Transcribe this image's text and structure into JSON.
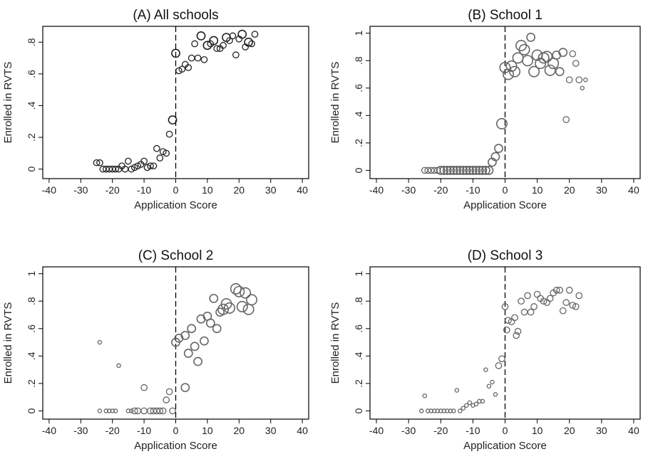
{
  "chart_data": [
    {
      "type": "scatter",
      "title": "(A) All schools",
      "xlabel": "Application Score",
      "ylabel": "Enrolled in RVTS",
      "xlim": [
        -40,
        40
      ],
      "ylim": [
        0,
        0.9
      ],
      "xticks": [
        -40,
        -30,
        -20,
        -10,
        0,
        10,
        20,
        30,
        40
      ],
      "xtick_labels": [
        "-40",
        "-30",
        "-20",
        "-10",
        "0",
        "10",
        "20",
        "30",
        "40"
      ],
      "yticks": [
        0,
        0.2,
        0.4,
        0.6,
        0.8
      ],
      "ytick_labels": [
        "0",
        ".2",
        ".4",
        ".6",
        ".8"
      ],
      "cutoff": 0,
      "marker_color": "#222222",
      "points": [
        {
          "x": -25,
          "y": 0.04,
          "n": 2
        },
        {
          "x": -24,
          "y": 0.04,
          "n": 2
        },
        {
          "x": -23,
          "y": 0.0,
          "n": 2
        },
        {
          "x": -22,
          "y": 0.0,
          "n": 2
        },
        {
          "x": -21,
          "y": 0.0,
          "n": 2
        },
        {
          "x": -20,
          "y": 0.0,
          "n": 2
        },
        {
          "x": -19,
          "y": 0.0,
          "n": 2
        },
        {
          "x": -18,
          "y": 0.0,
          "n": 2
        },
        {
          "x": -17,
          "y": 0.02,
          "n": 2
        },
        {
          "x": -16,
          "y": 0.0,
          "n": 2
        },
        {
          "x": -15,
          "y": 0.05,
          "n": 2
        },
        {
          "x": -14,
          "y": 0.0,
          "n": 2
        },
        {
          "x": -13,
          "y": 0.01,
          "n": 2
        },
        {
          "x": -12,
          "y": 0.02,
          "n": 2
        },
        {
          "x": -11,
          "y": 0.03,
          "n": 2
        },
        {
          "x": -10,
          "y": 0.05,
          "n": 2
        },
        {
          "x": -9,
          "y": 0.01,
          "n": 2
        },
        {
          "x": -8,
          "y": 0.02,
          "n": 2
        },
        {
          "x": -7,
          "y": 0.02,
          "n": 2
        },
        {
          "x": -6,
          "y": 0.13,
          "n": 2
        },
        {
          "x": -5,
          "y": 0.07,
          "n": 2
        },
        {
          "x": -4,
          "y": 0.11,
          "n": 2
        },
        {
          "x": -3,
          "y": 0.1,
          "n": 2
        },
        {
          "x": -2,
          "y": 0.22,
          "n": 2
        },
        {
          "x": -1,
          "y": 0.31,
          "n": 3
        },
        {
          "x": 0,
          "y": 0.73,
          "n": 3
        },
        {
          "x": 1,
          "y": 0.62,
          "n": 2
        },
        {
          "x": 2,
          "y": 0.63,
          "n": 2
        },
        {
          "x": 3,
          "y": 0.66,
          "n": 2
        },
        {
          "x": 4,
          "y": 0.64,
          "n": 2
        },
        {
          "x": 5,
          "y": 0.7,
          "n": 2
        },
        {
          "x": 6,
          "y": 0.79,
          "n": 2
        },
        {
          "x": 7,
          "y": 0.7,
          "n": 2
        },
        {
          "x": 8,
          "y": 0.84,
          "n": 3
        },
        {
          "x": 9,
          "y": 0.69,
          "n": 2
        },
        {
          "x": 10,
          "y": 0.78,
          "n": 3
        },
        {
          "x": 11,
          "y": 0.79,
          "n": 2
        },
        {
          "x": 12,
          "y": 0.81,
          "n": 3
        },
        {
          "x": 13,
          "y": 0.76,
          "n": 2
        },
        {
          "x": 14,
          "y": 0.76,
          "n": 2
        },
        {
          "x": 15,
          "y": 0.78,
          "n": 2
        },
        {
          "x": 16,
          "y": 0.83,
          "n": 3
        },
        {
          "x": 17,
          "y": 0.81,
          "n": 2
        },
        {
          "x": 18,
          "y": 0.84,
          "n": 2
        },
        {
          "x": 19,
          "y": 0.72,
          "n": 2
        },
        {
          "x": 20,
          "y": 0.82,
          "n": 2
        },
        {
          "x": 21,
          "y": 0.85,
          "n": 3
        },
        {
          "x": 22,
          "y": 0.77,
          "n": 2
        },
        {
          "x": 23,
          "y": 0.8,
          "n": 3
        },
        {
          "x": 24,
          "y": 0.79,
          "n": 2
        },
        {
          "x": 25,
          "y": 0.85,
          "n": 2
        }
      ]
    },
    {
      "type": "scatter",
      "title": "(B) School 1",
      "xlabel": "Application Score",
      "ylabel": "Enrolled in RVTS",
      "xlim": [
        -40,
        40
      ],
      "ylim": [
        0,
        1
      ],
      "xticks": [
        -40,
        -30,
        -20,
        -10,
        0,
        10,
        20,
        30,
        40
      ],
      "xtick_labels": [
        "-40",
        "-30",
        "-20",
        "-10",
        "0",
        "10",
        "20",
        "30",
        "40"
      ],
      "yticks": [
        0,
        0.2,
        0.4,
        0.6,
        0.8,
        1
      ],
      "ytick_labels": [
        "0",
        ".2",
        ".4",
        ".6",
        ".8",
        "1"
      ],
      "cutoff": 0,
      "marker_color": "#666666",
      "points": [
        {
          "x": -25,
          "y": 0.0,
          "n": 2
        },
        {
          "x": -24,
          "y": 0.0,
          "n": 2
        },
        {
          "x": -23,
          "y": 0.0,
          "n": 2
        },
        {
          "x": -22,
          "y": 0.0,
          "n": 2
        },
        {
          "x": -21,
          "y": 0.0,
          "n": 2
        },
        {
          "x": -20,
          "y": 0.0,
          "n": 3
        },
        {
          "x": -19,
          "y": 0.0,
          "n": 3
        },
        {
          "x": -18,
          "y": 0.0,
          "n": 3
        },
        {
          "x": -17,
          "y": 0.0,
          "n": 3
        },
        {
          "x": -16,
          "y": 0.0,
          "n": 3
        },
        {
          "x": -15,
          "y": 0.0,
          "n": 3
        },
        {
          "x": -14,
          "y": 0.0,
          "n": 3
        },
        {
          "x": -13,
          "y": 0.0,
          "n": 3
        },
        {
          "x": -12,
          "y": 0.0,
          "n": 3
        },
        {
          "x": -11,
          "y": 0.0,
          "n": 3
        },
        {
          "x": -10,
          "y": 0.0,
          "n": 3
        },
        {
          "x": -9,
          "y": 0.0,
          "n": 3
        },
        {
          "x": -8,
          "y": 0.0,
          "n": 3
        },
        {
          "x": -7,
          "y": 0.0,
          "n": 3
        },
        {
          "x": -6,
          "y": 0.0,
          "n": 3
        },
        {
          "x": -5,
          "y": 0.0,
          "n": 3
        },
        {
          "x": -4,
          "y": 0.06,
          "n": 3
        },
        {
          "x": -3,
          "y": 0.1,
          "n": 3
        },
        {
          "x": -2,
          "y": 0.16,
          "n": 3
        },
        {
          "x": -1,
          "y": 0.34,
          "n": 4
        },
        {
          "x": 0,
          "y": 0.75,
          "n": 4
        },
        {
          "x": 1,
          "y": 0.7,
          "n": 4
        },
        {
          "x": 2,
          "y": 0.76,
          "n": 4
        },
        {
          "x": 3,
          "y": 0.72,
          "n": 4
        },
        {
          "x": 4,
          "y": 0.82,
          "n": 4
        },
        {
          "x": 5,
          "y": 0.91,
          "n": 4
        },
        {
          "x": 6,
          "y": 0.88,
          "n": 4
        },
        {
          "x": 7,
          "y": 0.8,
          "n": 4
        },
        {
          "x": 8,
          "y": 0.97,
          "n": 3
        },
        {
          "x": 9,
          "y": 0.72,
          "n": 4
        },
        {
          "x": 10,
          "y": 0.84,
          "n": 4
        },
        {
          "x": 11,
          "y": 0.78,
          "n": 4
        },
        {
          "x": 12,
          "y": 0.82,
          "n": 4
        },
        {
          "x": 13,
          "y": 0.83,
          "n": 4
        },
        {
          "x": 14,
          "y": 0.73,
          "n": 4
        },
        {
          "x": 15,
          "y": 0.78,
          "n": 4
        },
        {
          "x": 16,
          "y": 0.84,
          "n": 3
        },
        {
          "x": 17,
          "y": 0.72,
          "n": 3
        },
        {
          "x": 18,
          "y": 0.86,
          "n": 3
        },
        {
          "x": 19,
          "y": 0.37,
          "n": 2
        },
        {
          "x": 20,
          "y": 0.66,
          "n": 2
        },
        {
          "x": 21,
          "y": 0.85,
          "n": 2
        },
        {
          "x": 22,
          "y": 0.78,
          "n": 2
        },
        {
          "x": 23,
          "y": 0.66,
          "n": 2
        },
        {
          "x": 24,
          "y": 0.6,
          "n": 1
        },
        {
          "x": 25,
          "y": 0.66,
          "n": 1
        }
      ]
    },
    {
      "type": "scatter",
      "title": "(C) School 2",
      "xlabel": "Application Score",
      "ylabel": "Enrolled in RVTS",
      "xlim": [
        -40,
        40
      ],
      "ylim": [
        0,
        1
      ],
      "xticks": [
        -40,
        -30,
        -20,
        -10,
        0,
        10,
        20,
        30,
        40
      ],
      "xtick_labels": [
        "-40",
        "-30",
        "-20",
        "-10",
        "0",
        "10",
        "20",
        "30",
        "40"
      ],
      "yticks": [
        0,
        0.2,
        0.4,
        0.6,
        0.8,
        1
      ],
      "ytick_labels": [
        "0",
        ".2",
        ".4",
        ".6",
        ".8",
        "1"
      ],
      "cutoff": 0,
      "marker_color": "#666666",
      "points": [
        {
          "x": -24,
          "y": 0.0,
          "n": 1
        },
        {
          "x": -24,
          "y": 0.5,
          "n": 1
        },
        {
          "x": -22,
          "y": 0.0,
          "n": 1
        },
        {
          "x": -21,
          "y": 0.0,
          "n": 1
        },
        {
          "x": -20,
          "y": 0.0,
          "n": 1
        },
        {
          "x": -19,
          "y": 0.0,
          "n": 1
        },
        {
          "x": -18,
          "y": 0.33,
          "n": 1
        },
        {
          "x": -15,
          "y": 0.0,
          "n": 1
        },
        {
          "x": -14,
          "y": 0.0,
          "n": 1
        },
        {
          "x": -13,
          "y": 0.0,
          "n": 2
        },
        {
          "x": -12,
          "y": 0.0,
          "n": 2
        },
        {
          "x": -10,
          "y": 0.0,
          "n": 2
        },
        {
          "x": -10,
          "y": 0.17,
          "n": 2
        },
        {
          "x": -8,
          "y": 0.0,
          "n": 2
        },
        {
          "x": -7,
          "y": 0.0,
          "n": 2
        },
        {
          "x": -6,
          "y": 0.0,
          "n": 2
        },
        {
          "x": -5,
          "y": 0.0,
          "n": 2
        },
        {
          "x": -4,
          "y": 0.0,
          "n": 2
        },
        {
          "x": -3,
          "y": 0.08,
          "n": 2
        },
        {
          "x": -2,
          "y": 0.14,
          "n": 2
        },
        {
          "x": -1,
          "y": 0.0,
          "n": 2
        },
        {
          "x": 0,
          "y": 0.5,
          "n": 3
        },
        {
          "x": 1,
          "y": 0.53,
          "n": 3
        },
        {
          "x": 3,
          "y": 0.17,
          "n": 3
        },
        {
          "x": 3,
          "y": 0.55,
          "n": 3
        },
        {
          "x": 4,
          "y": 0.42,
          "n": 3
        },
        {
          "x": 5,
          "y": 0.6,
          "n": 3
        },
        {
          "x": 6,
          "y": 0.47,
          "n": 3
        },
        {
          "x": 7,
          "y": 0.36,
          "n": 3
        },
        {
          "x": 8,
          "y": 0.67,
          "n": 3
        },
        {
          "x": 9,
          "y": 0.51,
          "n": 3
        },
        {
          "x": 10,
          "y": 0.69,
          "n": 3
        },
        {
          "x": 11,
          "y": 0.64,
          "n": 3
        },
        {
          "x": 12,
          "y": 0.82,
          "n": 3
        },
        {
          "x": 13,
          "y": 0.6,
          "n": 3
        },
        {
          "x": 14,
          "y": 0.72,
          "n": 3
        },
        {
          "x": 15,
          "y": 0.74,
          "n": 4
        },
        {
          "x": 16,
          "y": 0.78,
          "n": 4
        },
        {
          "x": 17,
          "y": 0.75,
          "n": 4
        },
        {
          "x": 19,
          "y": 0.89,
          "n": 4
        },
        {
          "x": 20,
          "y": 0.87,
          "n": 4
        },
        {
          "x": 21,
          "y": 0.76,
          "n": 4
        },
        {
          "x": 22,
          "y": 0.86,
          "n": 4
        },
        {
          "x": 23,
          "y": 0.74,
          "n": 4
        },
        {
          "x": 24,
          "y": 0.81,
          "n": 4
        }
      ]
    },
    {
      "type": "scatter",
      "title": "(D) School 3",
      "xlabel": "Application Score",
      "ylabel": "Enrolled in RVTS",
      "xlim": [
        -40,
        40
      ],
      "ylim": [
        0,
        1
      ],
      "xticks": [
        -40,
        -30,
        -20,
        -10,
        0,
        10,
        20,
        30,
        40
      ],
      "xtick_labels": [
        "-40",
        "-30",
        "-20",
        "-10",
        "0",
        "10",
        "20",
        "30",
        "40"
      ],
      "yticks": [
        0,
        0.2,
        0.4,
        0.6,
        0.8,
        1
      ],
      "ytick_labels": [
        "0",
        ".2",
        ".4",
        ".6",
        ".8",
        "1"
      ],
      "cutoff": 0,
      "marker_color": "#666666",
      "points": [
        {
          "x": -26,
          "y": 0.0,
          "n": 1
        },
        {
          "x": -25,
          "y": 0.11,
          "n": 1
        },
        {
          "x": -24,
          "y": 0.0,
          "n": 1
        },
        {
          "x": -23,
          "y": 0.0,
          "n": 1
        },
        {
          "x": -22,
          "y": 0.0,
          "n": 1
        },
        {
          "x": -21,
          "y": 0.0,
          "n": 1
        },
        {
          "x": -20,
          "y": 0.0,
          "n": 1
        },
        {
          "x": -19,
          "y": 0.0,
          "n": 1
        },
        {
          "x": -18,
          "y": 0.0,
          "n": 1
        },
        {
          "x": -17,
          "y": 0.0,
          "n": 1
        },
        {
          "x": -16,
          "y": 0.0,
          "n": 1
        },
        {
          "x": -15,
          "y": 0.15,
          "n": 1
        },
        {
          "x": -14,
          "y": 0.0,
          "n": 1
        },
        {
          "x": -13,
          "y": 0.02,
          "n": 1
        },
        {
          "x": -12,
          "y": 0.04,
          "n": 1
        },
        {
          "x": -11,
          "y": 0.06,
          "n": 1
        },
        {
          "x": -10,
          "y": 0.04,
          "n": 1
        },
        {
          "x": -9,
          "y": 0.05,
          "n": 1
        },
        {
          "x": -8,
          "y": 0.07,
          "n": 1
        },
        {
          "x": -7,
          "y": 0.07,
          "n": 1
        },
        {
          "x": -6,
          "y": 0.3,
          "n": 1
        },
        {
          "x": -5,
          "y": 0.18,
          "n": 1
        },
        {
          "x": -4,
          "y": 0.21,
          "n": 1
        },
        {
          "x": -3,
          "y": 0.12,
          "n": 1
        },
        {
          "x": -2,
          "y": 0.33,
          "n": 2
        },
        {
          "x": -1,
          "y": 0.38,
          "n": 2
        },
        {
          "x": 0,
          "y": 0.76,
          "n": 2
        },
        {
          "x": 0.5,
          "y": 0.59,
          "n": 2
        },
        {
          "x": 1,
          "y": 0.66,
          "n": 2
        },
        {
          "x": 2,
          "y": 0.65,
          "n": 2
        },
        {
          "x": 3,
          "y": 0.68,
          "n": 2
        },
        {
          "x": 3.5,
          "y": 0.55,
          "n": 2
        },
        {
          "x": 4,
          "y": 0.58,
          "n": 2
        },
        {
          "x": 5,
          "y": 0.8,
          "n": 2
        },
        {
          "x": 6,
          "y": 0.72,
          "n": 2
        },
        {
          "x": 7,
          "y": 0.84,
          "n": 2
        },
        {
          "x": 8,
          "y": 0.72,
          "n": 2
        },
        {
          "x": 9,
          "y": 0.76,
          "n": 2
        },
        {
          "x": 10,
          "y": 0.85,
          "n": 2
        },
        {
          "x": 11,
          "y": 0.82,
          "n": 2
        },
        {
          "x": 12,
          "y": 0.8,
          "n": 2
        },
        {
          "x": 13,
          "y": 0.79,
          "n": 2
        },
        {
          "x": 14,
          "y": 0.82,
          "n": 2
        },
        {
          "x": 15,
          "y": 0.86,
          "n": 2
        },
        {
          "x": 16,
          "y": 0.88,
          "n": 2
        },
        {
          "x": 17,
          "y": 0.88,
          "n": 2
        },
        {
          "x": 18,
          "y": 0.73,
          "n": 2
        },
        {
          "x": 19,
          "y": 0.79,
          "n": 2
        },
        {
          "x": 20,
          "y": 0.88,
          "n": 2
        },
        {
          "x": 21,
          "y": 0.77,
          "n": 2
        },
        {
          "x": 22,
          "y": 0.76,
          "n": 2
        },
        {
          "x": 23,
          "y": 0.84,
          "n": 2
        }
      ]
    }
  ]
}
